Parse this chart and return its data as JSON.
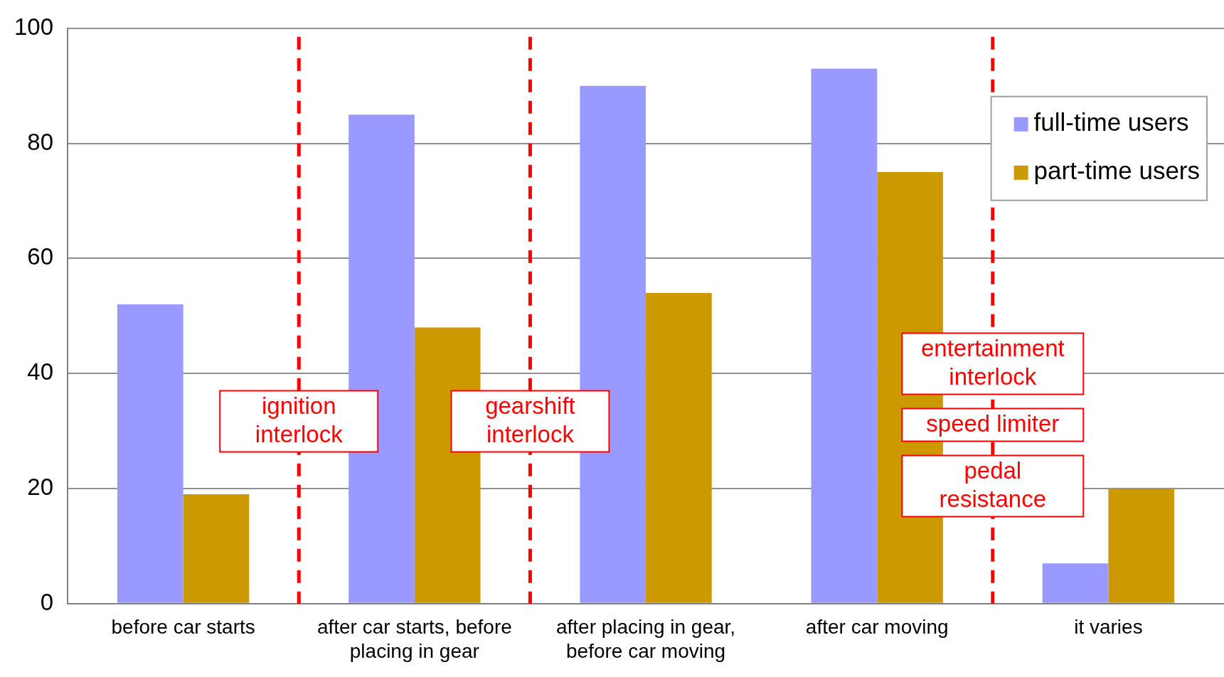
{
  "chart_data": {
    "type": "bar",
    "categories": [
      "before car starts",
      "after car starts, before placing in gear",
      "after placing in gear, before car moving",
      "after car moving",
      "it varies"
    ],
    "series": [
      {
        "name": "full-time users",
        "color": "#9999ff",
        "values": [
          52,
          85,
          90,
          93,
          7
        ]
      },
      {
        "name": "part-time users",
        "color": "#cc9900",
        "values": [
          19,
          48,
          54,
          75,
          20
        ]
      }
    ],
    "ylim": [
      0,
      100
    ],
    "yticks": [
      0,
      20,
      40,
      60,
      80,
      100
    ],
    "grid": "y",
    "legend": "top right",
    "annotations": [
      "ignition interlock",
      "gearshift interlock",
      "entertainment interlock",
      "speed limiter",
      "pedal resistance"
    ]
  }
}
